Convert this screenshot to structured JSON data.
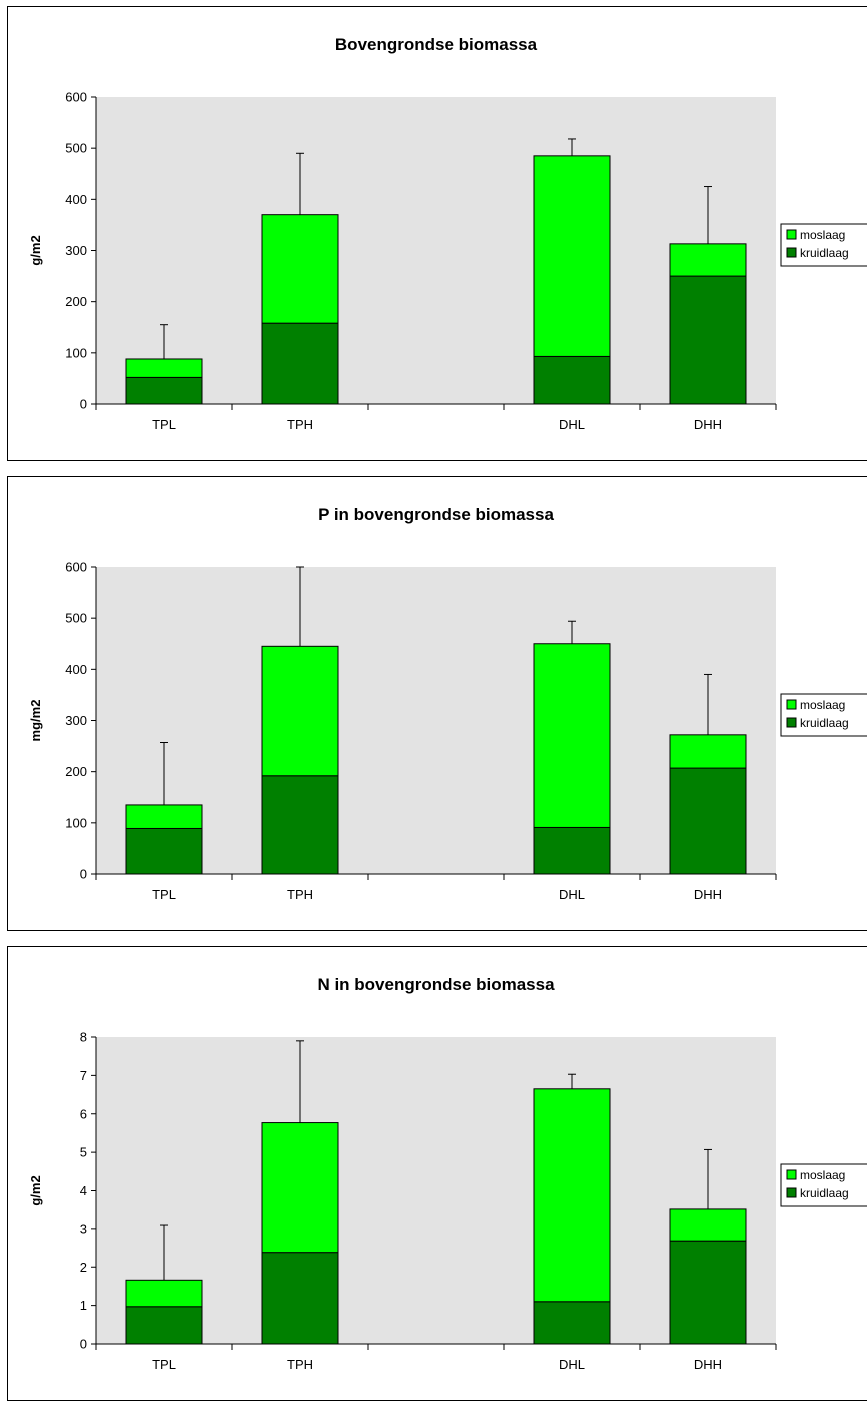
{
  "colors": {
    "moslaag": "#00ff00",
    "kruidlaag": "#008000",
    "plot_bg": "#e3e3e3"
  },
  "chart_data": [
    {
      "type": "bar",
      "stacked": true,
      "title": "Bovengrondse biomassa",
      "ylabel": "g/m2",
      "ylim": [
        0,
        600
      ],
      "yticks": [
        0,
        100,
        200,
        300,
        400,
        500,
        600
      ],
      "categories": [
        "TPL",
        "TPH",
        "",
        "DHL",
        "DHH"
      ],
      "series": [
        {
          "name": "kruidlaag",
          "values": [
            52,
            158,
            null,
            93,
            250
          ]
        },
        {
          "name": "moslaag",
          "values": [
            36,
            212,
            null,
            392,
            63
          ]
        }
      ],
      "error_top": [
        155,
        490,
        null,
        518,
        425
      ],
      "legend": "right",
      "grid": false
    },
    {
      "type": "bar",
      "stacked": true,
      "title": "P in bovengrondse biomassa",
      "ylabel": "mg/m2",
      "ylim": [
        0,
        600
      ],
      "yticks": [
        0,
        100,
        200,
        300,
        400,
        500,
        600
      ],
      "categories": [
        "TPL",
        "TPH",
        "",
        "DHL",
        "DHH"
      ],
      "series": [
        {
          "name": "kruidlaag",
          "values": [
            89,
            192,
            null,
            91,
            207
          ]
        },
        {
          "name": "moslaag",
          "values": [
            46,
            253,
            null,
            359,
            65
          ]
        }
      ],
      "error_top": [
        257,
        600,
        null,
        494,
        390
      ],
      "legend": "right",
      "grid": false
    },
    {
      "type": "bar",
      "stacked": true,
      "title": "N in bovengrondse biomassa",
      "ylabel": "g/m2",
      "ylim": [
        0,
        8
      ],
      "yticks": [
        0,
        1,
        2,
        3,
        4,
        5,
        6,
        7,
        8
      ],
      "categories": [
        "TPL",
        "TPH",
        "",
        "DHL",
        "DHH"
      ],
      "series": [
        {
          "name": "kruidlaag",
          "values": [
            0.97,
            2.38,
            null,
            1.1,
            2.68
          ]
        },
        {
          "name": "moslaag",
          "values": [
            0.69,
            3.39,
            null,
            5.55,
            0.84
          ]
        }
      ],
      "error_top": [
        3.1,
        7.9,
        null,
        7.03,
        5.07
      ],
      "legend": "right",
      "grid": false
    }
  ]
}
